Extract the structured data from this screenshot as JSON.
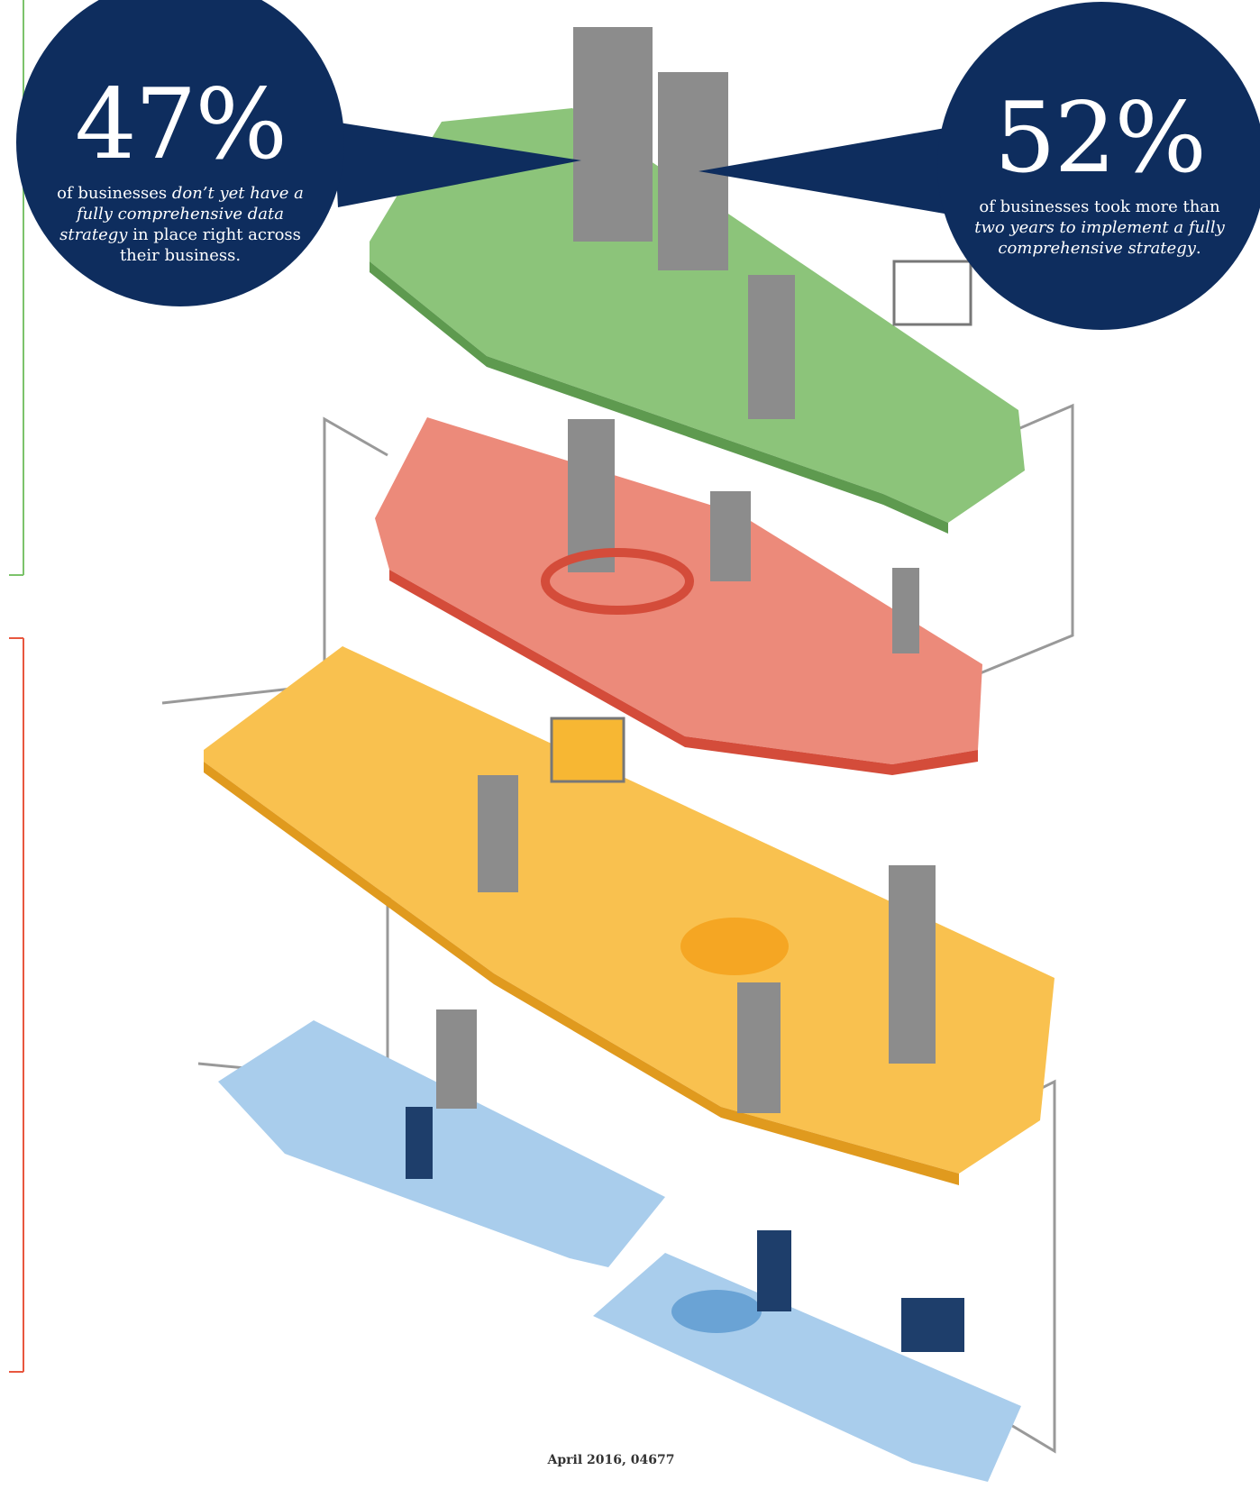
{
  "callouts": [
    {
      "stat": "47%",
      "text": [
        "of businesses ",
        "don’t yet have a fully comprehensive data strategy",
        " in place right across their business."
      ]
    },
    {
      "stat": "52%",
      "text": [
        "of businesses took more than ",
        "two years to implement a fully comprehensive strategy",
        "."
      ]
    }
  ],
  "footer": "April 2016, 04677"
}
